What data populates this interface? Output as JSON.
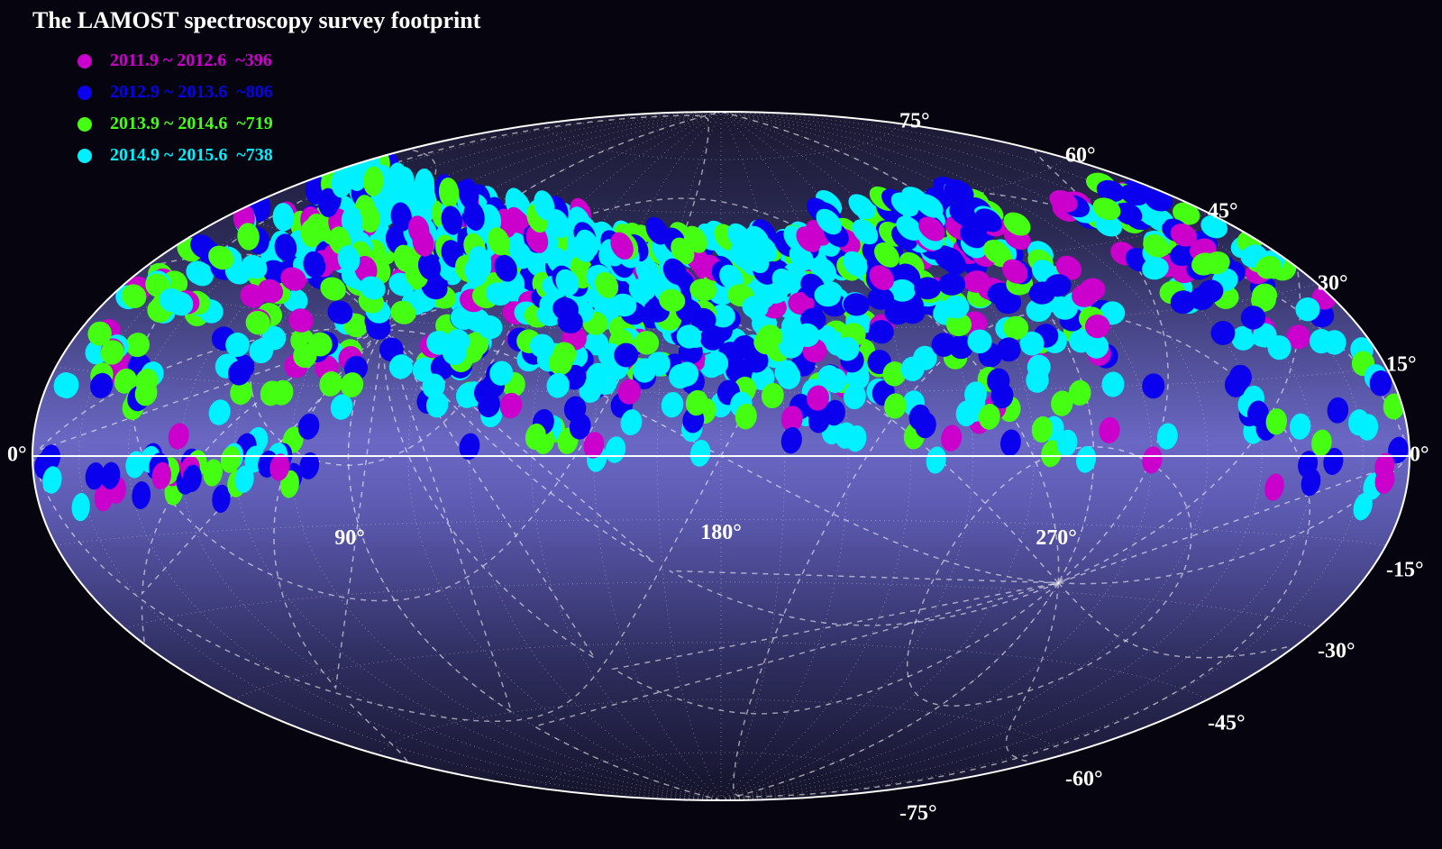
{
  "title": "The LAMOST spectroscopy survey footprint",
  "legend": [
    {
      "label": "2011.9 ~ 2012.6  ~396",
      "color": "#cc00cc"
    },
    {
      "label": "2012.9 ~ 2013.6  ~806",
      "color": "#0a00ee"
    },
    {
      "label": "2013.9 ~ 2014.6  ~719",
      "color": "#44ff11"
    },
    {
      "label": "2014.9 ~ 2015.6  ~738",
      "color": "#00f0ff"
    }
  ],
  "lat_labels": {
    "north": [
      "75°",
      "60°",
      "45°",
      "30°",
      "15°"
    ],
    "equator": "0°",
    "south": [
      "-15°",
      "-30°",
      "-45°",
      "-60°",
      "-75°"
    ]
  },
  "lon_labels": [
    "90°",
    "180°",
    "270°"
  ]
}
